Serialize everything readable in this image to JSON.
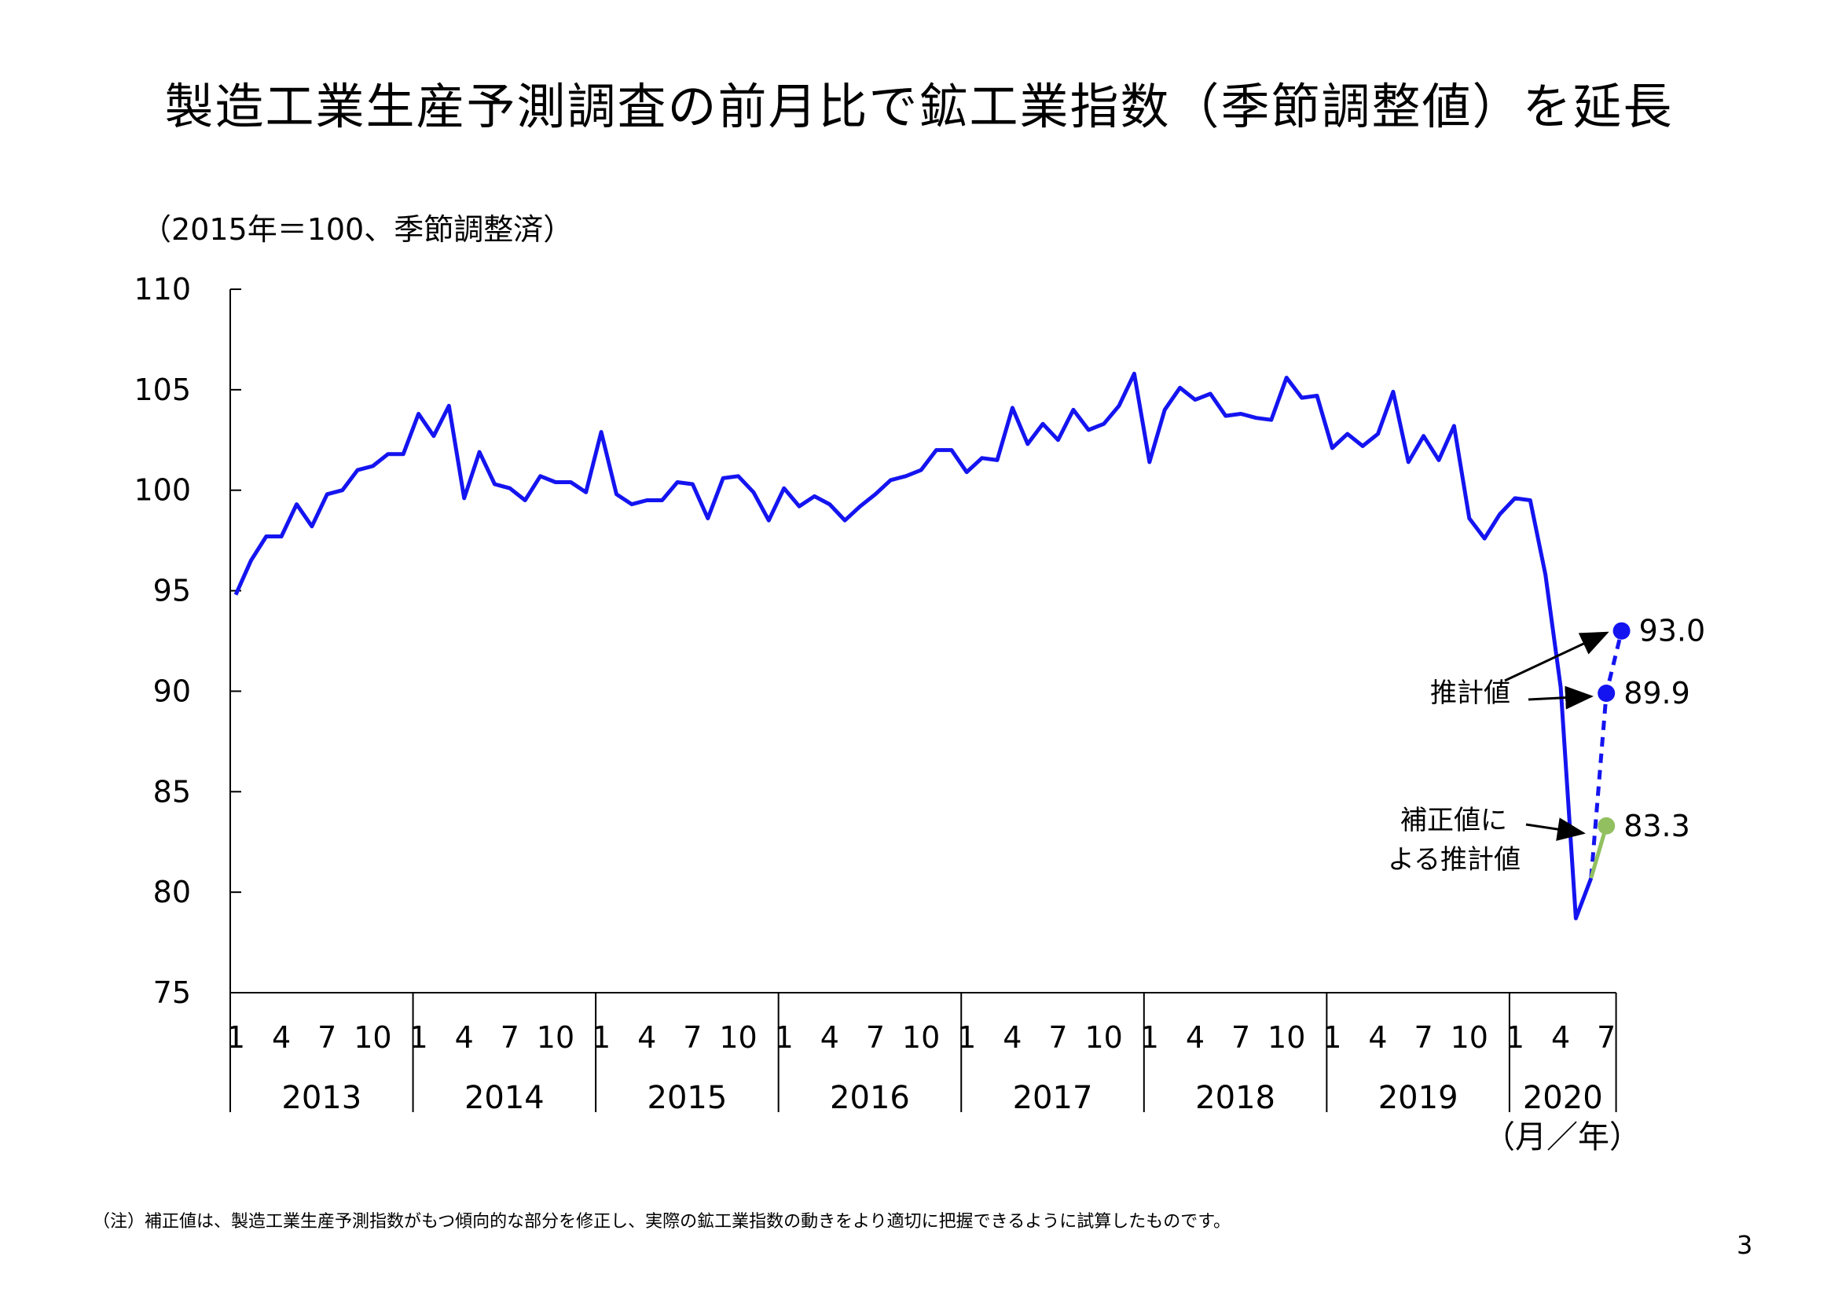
{
  "title": "製造工業生産予測調査の前月比で鉱工業指数（季節調整値）を延長",
  "chart_data": {
    "type": "line",
    "ylabel": "（2015年＝100、季節調整済）",
    "xlabel": "（月／年）",
    "ylim": [
      75,
      110
    ],
    "yticks": [
      75,
      80,
      85,
      90,
      95,
      100,
      105,
      110
    ],
    "month_ticks": [
      "1",
      "4",
      "7",
      "10"
    ],
    "month_ticks_last": [
      "1",
      "4",
      "7"
    ],
    "years": [
      "2013",
      "2014",
      "2015",
      "2016",
      "2017",
      "2018",
      "2019",
      "2020"
    ],
    "series": [
      {
        "name": "鉱工業指数",
        "color": "#1414f0",
        "start": "2013-01",
        "values": [
          94.8,
          96.5,
          97.7,
          97.7,
          99.3,
          98.2,
          99.8,
          100.0,
          101.0,
          101.2,
          101.8,
          101.8,
          103.8,
          102.7,
          104.2,
          99.6,
          101.9,
          100.3,
          100.1,
          99.5,
          100.7,
          100.4,
          100.4,
          99.9,
          102.9,
          99.8,
          99.3,
          99.5,
          99.5,
          100.4,
          100.3,
          98.6,
          100.6,
          100.7,
          99.9,
          98.5,
          100.1,
          99.2,
          99.7,
          99.3,
          98.5,
          99.2,
          99.8,
          100.5,
          100.7,
          101.0,
          102.0,
          102.0,
          100.9,
          101.6,
          101.5,
          104.1,
          102.3,
          103.3,
          102.5,
          104.0,
          103.0,
          103.3,
          104.2,
          105.8,
          101.4,
          104.0,
          105.1,
          104.5,
          104.8,
          103.7,
          103.8,
          103.6,
          103.5,
          105.6,
          104.6,
          104.7,
          102.1,
          102.8,
          102.2,
          102.8,
          104.9,
          101.4,
          102.7,
          101.5,
          103.2,
          98.6,
          97.6,
          98.8,
          99.6,
          99.5,
          95.8,
          90.2,
          78.7,
          80.7
        ]
      },
      {
        "name": "推計値",
        "color": "#1414f0",
        "style": "dashed",
        "points": [
          {
            "month": "2020-06",
            "value": 80.7
          },
          {
            "month": "2020-07",
            "value": 89.9
          },
          {
            "month": "2020-08",
            "value": 93.0
          }
        ]
      },
      {
        "name": "補正値による推計値",
        "color": "#92c060",
        "points": [
          {
            "month": "2020-06",
            "value": 80.7
          },
          {
            "month": "2020-07",
            "value": 83.3
          }
        ]
      }
    ],
    "annotations": {
      "estimate_label": "推計値",
      "corrected_label_line1": "補正値に",
      "corrected_label_line2": "よる推計値",
      "value_labels": [
        "93.0",
        "89.9",
        "83.3"
      ]
    }
  },
  "footnote": "（注）補正値は、製造工業生産予測指数がもつ傾向的な部分を修正し、実際の鉱工業指数の動きをより適切に把握できるように試算したものです。",
  "page_number": "3"
}
